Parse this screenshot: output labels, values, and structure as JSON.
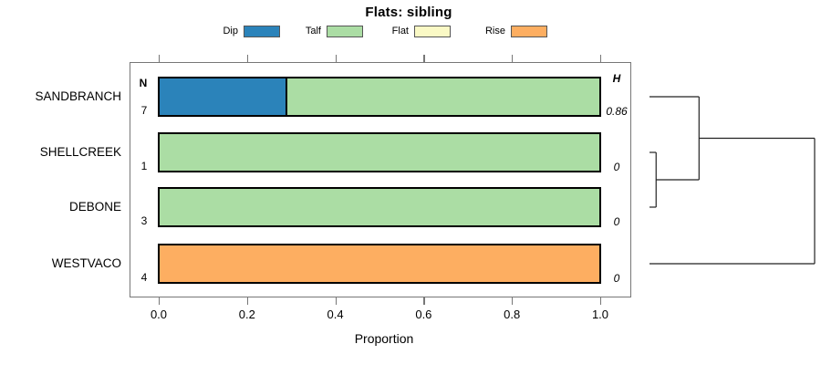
{
  "chart_data": {
    "type": "bar",
    "subtype": "horizontal-stacked-proportion-with-dendrogram",
    "title": "Flats: sibling",
    "xlabel": "Proportion",
    "xlim": [
      0.0,
      1.0
    ],
    "x_tick_labels": [
      "0.0",
      "0.2",
      "0.4",
      "0.6",
      "0.8",
      "1.0"
    ],
    "x_tick_values": [
      0.0,
      0.2,
      0.4,
      0.6,
      0.8,
      1.0
    ],
    "grid": "off",
    "legend_position": "top",
    "legend": [
      {
        "label": "Dip",
        "color": "#2B83BA"
      },
      {
        "label": "Talf",
        "color": "#ABDDA4"
      },
      {
        "label": "Flat",
        "color": "#FAF9C5"
      },
      {
        "label": "Rise",
        "color": "#FDAE61"
      }
    ],
    "columns": {
      "n_header": "N",
      "h_header": "H"
    },
    "categories": [
      "SANDBRANCH",
      "SHELLCREEK",
      "DEBONE",
      "WESTVACO"
    ],
    "rows": [
      {
        "name": "SANDBRANCH",
        "n": "7",
        "h": "0.86",
        "segments": [
          {
            "category": "Dip",
            "value": 0.286
          },
          {
            "category": "Talf",
            "value": 0.714
          }
        ]
      },
      {
        "name": "SHELLCREEK",
        "n": "1",
        "h": "0",
        "segments": [
          {
            "category": "Talf",
            "value": 1.0
          }
        ]
      },
      {
        "name": "DEBONE",
        "n": "3",
        "h": "0",
        "segments": [
          {
            "category": "Talf",
            "value": 1.0
          }
        ]
      },
      {
        "name": "WESTVACO",
        "n": "4",
        "h": "0",
        "segments": [
          {
            "category": "Rise",
            "value": 1.0
          }
        ]
      }
    ],
    "dendrogram": {
      "leaf_order": [
        "SANDBRANCH",
        "SHELLCREEK",
        "DEBONE",
        "WESTVACO"
      ],
      "merges": [
        {
          "a": "SHELLCREEK",
          "b": "DEBONE",
          "height": 0.04,
          "id": "merge0"
        },
        {
          "a": "SANDBRANCH",
          "b": "merge0",
          "height": 0.3,
          "id": "merge1"
        },
        {
          "a": "merge1",
          "b": "WESTVACO",
          "height": 1.0,
          "id": "merge2"
        }
      ]
    },
    "colors": {
      "bar_border": "#000000",
      "axis_frame": "#777777",
      "dendrogram_line": "#222222",
      "text": "#000000"
    }
  }
}
